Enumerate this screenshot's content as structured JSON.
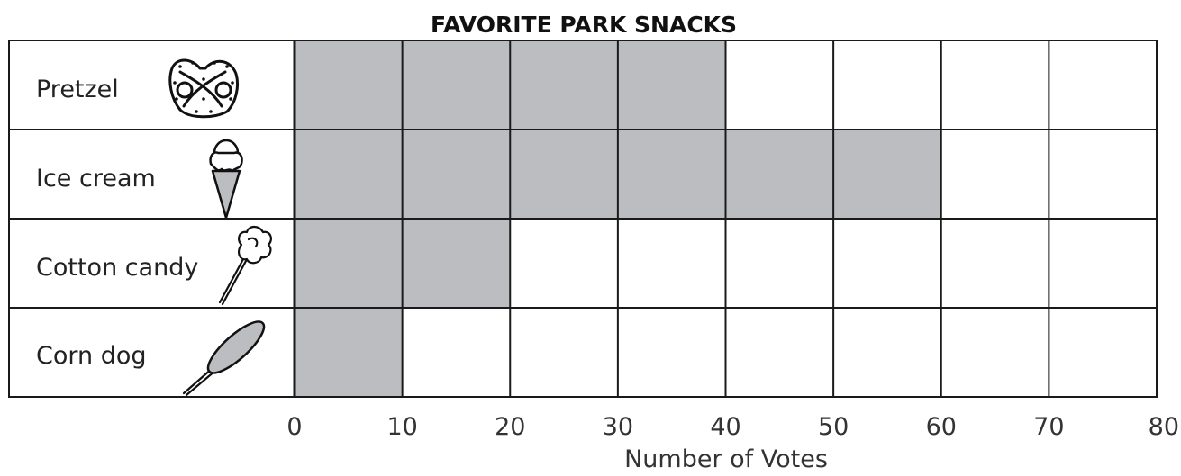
{
  "chart_data": {
    "type": "bar",
    "orientation": "horizontal",
    "title": "FAVORITE PARK SNACKS",
    "categories": [
      "Pretzel",
      "Ice cream",
      "Cotton candy",
      "Corn dog"
    ],
    "icons": [
      "pretzel-icon",
      "ice-cream-cone-icon",
      "cotton-candy-icon",
      "corn-dog-icon"
    ],
    "values": [
      40,
      60,
      20,
      10
    ],
    "xlabel": "Number of Votes",
    "ylabel": "",
    "xlim": [
      0,
      80
    ],
    "xticks": [
      0,
      10,
      20,
      30,
      40,
      50,
      60,
      70,
      80
    ],
    "grid": true,
    "bar_color": "#bbbdc0",
    "line_color": "#1a1a1a"
  }
}
